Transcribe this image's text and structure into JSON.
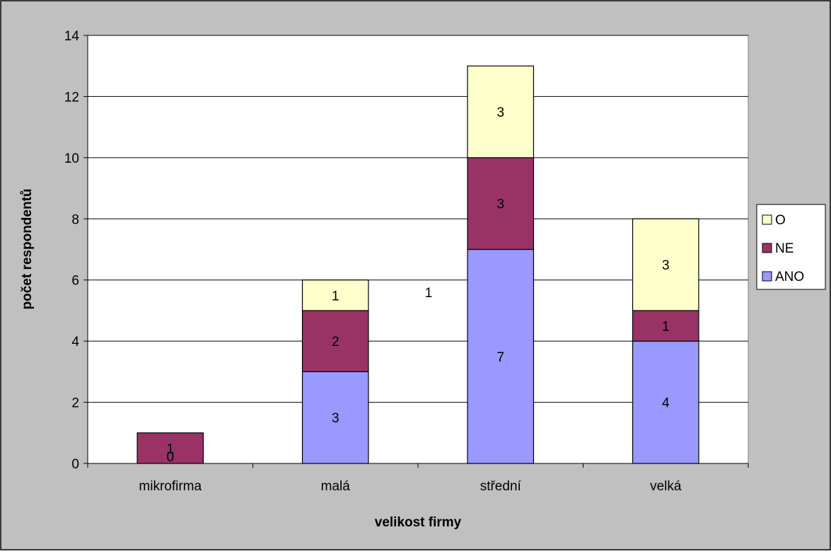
{
  "chart_data": {
    "type": "bar",
    "stacked": true,
    "categories": [
      "mikrofirma",
      "malá",
      "střední",
      "velká"
    ],
    "series": [
      {
        "name": "ANO",
        "values": [
          0,
          3,
          7,
          4
        ],
        "color": "#9999FF",
        "labels": [
          "0",
          "3",
          "7",
          "4"
        ]
      },
      {
        "name": "NE",
        "values": [
          1,
          2,
          3,
          1
        ],
        "color": "#993366",
        "labels": [
          "1",
          "2",
          "3",
          "1"
        ]
      },
      {
        "name": "O",
        "values": [
          0,
          1,
          3,
          3
        ],
        "color": "#FFFFCC",
        "labels": [
          "",
          "1",
          "3",
          "3"
        ]
      }
    ],
    "floating_label": "1",
    "xlabel": "velikost firmy",
    "ylabel": "počet respondentů",
    "ylim": [
      0,
      14
    ],
    "yticks": [
      0,
      2,
      4,
      6,
      8,
      10,
      12,
      14
    ],
    "grid": true,
    "legend_position": "right",
    "legend_order": [
      "O",
      "NE",
      "ANO"
    ],
    "colors": {
      "chart_area": "#C0C0C0",
      "plot_area": "#FFFFFF",
      "gridline": "#000000"
    }
  }
}
